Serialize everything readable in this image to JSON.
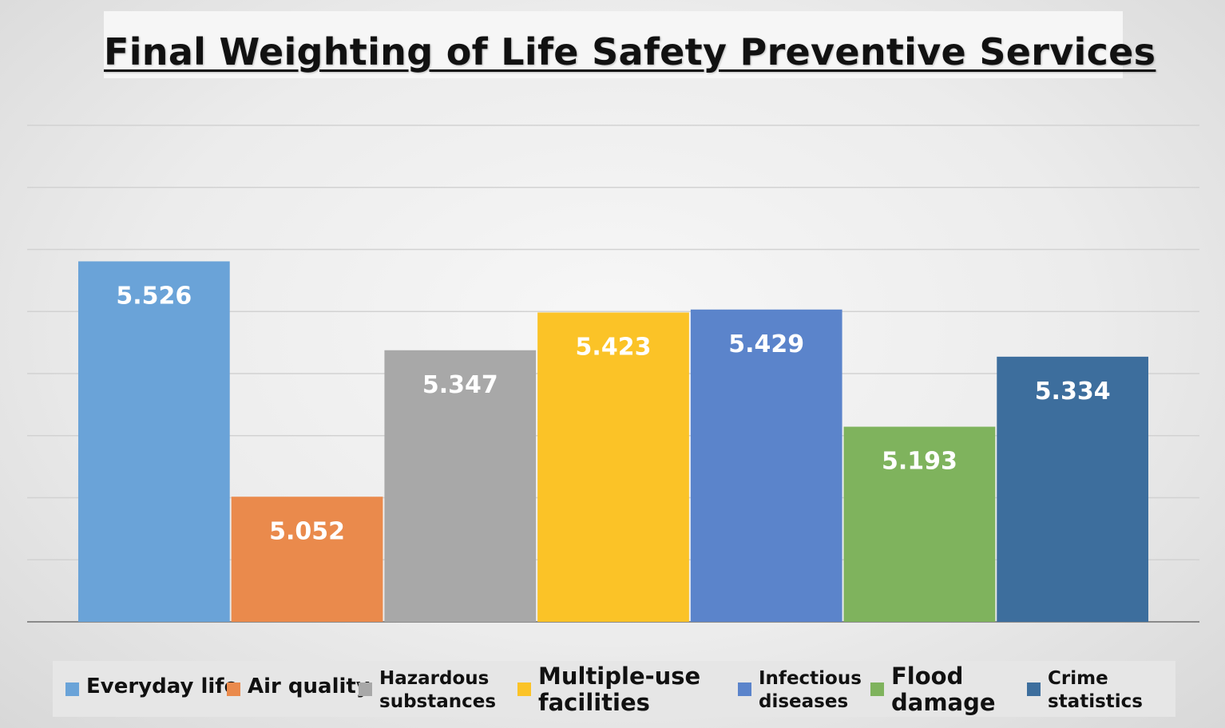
{
  "chart_data": {
    "type": "bar",
    "title": "Final Weighting of Life Safety Preventive Services",
    "categories": [
      "Everyday life",
      "Air quality",
      "Hazardous substances",
      "Multiple-use facilities",
      "Infectious diseases",
      "Flood damage",
      "Crime statistics"
    ],
    "values": [
      5.526,
      5.052,
      5.347,
      5.423,
      5.429,
      5.193,
      5.334
    ],
    "value_labels": [
      "5.526",
      "5.052",
      "5.347",
      "5.423",
      "5.429",
      "5.193",
      "5.334"
    ],
    "colors": [
      "#6aa3d8",
      "#ea8a4c",
      "#a8a8a8",
      "#fbc327",
      "#5b84cb",
      "#7fb35d",
      "#3d6e9d"
    ],
    "ylim": [
      4.8,
      5.8
    ],
    "grid": true,
    "legend_position": "bottom",
    "legend": [
      {
        "line1": "Everyday life",
        "line2": ""
      },
      {
        "line1": "Air quality",
        "line2": ""
      },
      {
        "line1": "Hazardous",
        "line2": "substances"
      },
      {
        "line1": "Multiple-use",
        "line2": "facilities"
      },
      {
        "line1": "Infectious",
        "line2": "diseases"
      },
      {
        "line1": "Flood",
        "line2": "damage"
      },
      {
        "line1": "Crime",
        "line2": "statistics"
      }
    ]
  }
}
